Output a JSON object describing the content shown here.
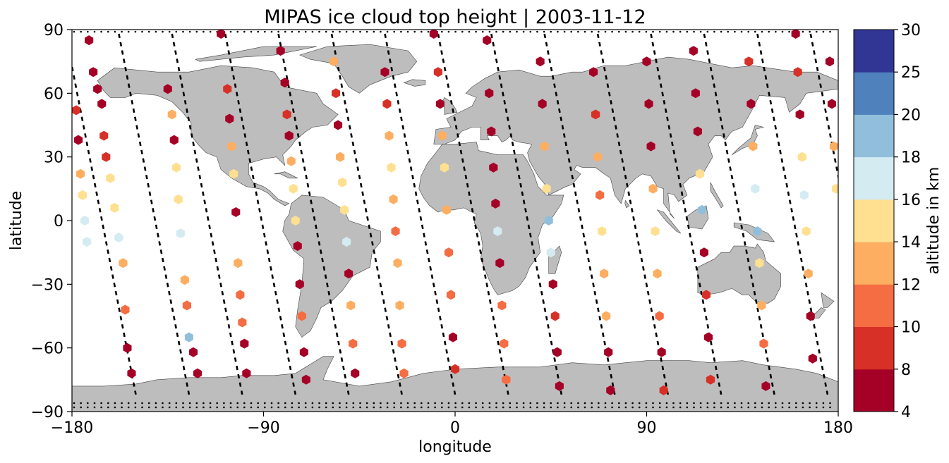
{
  "chart_data": {
    "type": "scatter",
    "title": "MIPAS ice cloud top height | 2003-11-12",
    "xlabel": "longitude",
    "ylabel": "latitude",
    "xlim": [
      -180,
      180
    ],
    "ylim": [
      -90,
      90
    ],
    "xticks": [
      "−180",
      "−90",
      "0",
      "90",
      "180"
    ],
    "yticks": [
      "90",
      "60",
      "30",
      "0",
      "−30",
      "−60",
      "−90"
    ],
    "colorbar": {
      "label": "altitude in km",
      "ticks": [
        "4",
        "8",
        "10",
        "12",
        "14",
        "16",
        "18",
        "20",
        "25",
        "30"
      ],
      "bins": [
        {
          "range": [
            4,
            8
          ],
          "color": "#a50026"
        },
        {
          "range": [
            8,
            10
          ],
          "color": "#d73027"
        },
        {
          "range": [
            10,
            12
          ],
          "color": "#f46d43"
        },
        {
          "range": [
            12,
            14
          ],
          "color": "#fdae61"
        },
        {
          "range": [
            14,
            16
          ],
          "color": "#fee090"
        },
        {
          "range": [
            16,
            18
          ],
          "color": "#d4ebf2"
        },
        {
          "range": [
            18,
            20
          ],
          "color": "#91bfdb"
        },
        {
          "range": [
            20,
            25
          ],
          "color": "#4f81bd"
        },
        {
          "range": [
            25,
            30
          ],
          "color": "#313695"
        }
      ]
    },
    "land_color": "#bdbdbd",
    "track_style": "black dashed",
    "orbit_tracks": [
      {
        "lon_start": -183,
        "lon_end": -150
      },
      {
        "lon_start": -158,
        "lon_end": -125
      },
      {
        "lon_start": -133,
        "lon_end": -100
      },
      {
        "lon_start": -108,
        "lon_end": -75
      },
      {
        "lon_start": -83,
        "lon_end": -50
      },
      {
        "lon_start": -58,
        "lon_end": -25
      },
      {
        "lon_start": -33,
        "lon_end": 0
      },
      {
        "lon_start": -8,
        "lon_end": 25
      },
      {
        "lon_start": 17,
        "lon_end": 50
      },
      {
        "lon_start": 42,
        "lon_end": 75
      },
      {
        "lon_start": 67,
        "lon_end": 100
      },
      {
        "lon_start": 92,
        "lon_end": 125
      },
      {
        "lon_start": 117,
        "lon_end": 150
      },
      {
        "lon_start": 142,
        "lon_end": 175
      },
      {
        "lon_start": 167,
        "lon_end": 200
      }
    ],
    "points": [
      {
        "lon": -172,
        "lat": 85,
        "alt": 6
      },
      {
        "lon": -170,
        "lat": 70,
        "alt": 6
      },
      {
        "lon": -168,
        "lat": 62,
        "alt": 6
      },
      {
        "lon": -166,
        "lat": 55,
        "alt": 6
      },
      {
        "lon": -165,
        "lat": 40,
        "alt": 9
      },
      {
        "lon": -164,
        "lat": 30,
        "alt": 9
      },
      {
        "lon": -162,
        "lat": 20,
        "alt": 14
      },
      {
        "lon": -160,
        "lat": 6,
        "alt": 15
      },
      {
        "lon": -158,
        "lat": -8,
        "alt": 17
      },
      {
        "lon": -156,
        "lat": -20,
        "alt": 13
      },
      {
        "lon": -155,
        "lat": -42,
        "alt": 11
      },
      {
        "lon": -154,
        "lat": -60,
        "alt": 6
      },
      {
        "lon": -152,
        "lat": -72,
        "alt": 6
      },
      {
        "lon": -178,
        "lat": 52,
        "alt": 9
      },
      {
        "lon": -177,
        "lat": 38,
        "alt": 6
      },
      {
        "lon": -176,
        "lat": 22,
        "alt": 13
      },
      {
        "lon": -175,
        "lat": 12,
        "alt": 15
      },
      {
        "lon": -174,
        "lat": 0,
        "alt": 17
      },
      {
        "lon": -173,
        "lat": -10,
        "alt": 17
      },
      {
        "lon": -135,
        "lat": 62,
        "alt": 6
      },
      {
        "lon": -133,
        "lat": 50,
        "alt": 13
      },
      {
        "lon": -132,
        "lat": 38,
        "alt": 6
      },
      {
        "lon": -131,
        "lat": 25,
        "alt": 15
      },
      {
        "lon": -130,
        "lat": 10,
        "alt": 15
      },
      {
        "lon": -129,
        "lat": -6,
        "alt": 17
      },
      {
        "lon": -127,
        "lat": -28,
        "alt": 13
      },
      {
        "lon": -126,
        "lat": -40,
        "alt": 11
      },
      {
        "lon": -125,
        "lat": -55,
        "alt": 19
      },
      {
        "lon": -123,
        "lat": -62,
        "alt": 6
      },
      {
        "lon": -121,
        "lat": -72,
        "alt": 6
      },
      {
        "lon": -110,
        "lat": 88,
        "alt": 6
      },
      {
        "lon": -107,
        "lat": 62,
        "alt": 9
      },
      {
        "lon": -106,
        "lat": 48,
        "alt": 6
      },
      {
        "lon": -105,
        "lat": 35,
        "alt": 13
      },
      {
        "lon": -104,
        "lat": 22,
        "alt": 15
      },
      {
        "lon": -103,
        "lat": 4,
        "alt": 6
      },
      {
        "lon": -102,
        "lat": -20,
        "alt": 13
      },
      {
        "lon": -101,
        "lat": -35,
        "alt": 11
      },
      {
        "lon": -100,
        "lat": -48,
        "alt": 11
      },
      {
        "lon": -99,
        "lat": -58,
        "alt": 6
      },
      {
        "lon": -98,
        "lat": -72,
        "alt": 6
      },
      {
        "lon": -82,
        "lat": 80,
        "alt": 6
      },
      {
        "lon": -80,
        "lat": 65,
        "alt": 6
      },
      {
        "lon": -79,
        "lat": 50,
        "alt": 9
      },
      {
        "lon": -78,
        "lat": 40,
        "alt": 6
      },
      {
        "lon": -77,
        "lat": 28,
        "alt": 13
      },
      {
        "lon": -76,
        "lat": 15,
        "alt": 15
      },
      {
        "lon": -75,
        "lat": 0,
        "alt": 15
      },
      {
        "lon": -74,
        "lat": -12,
        "alt": 6
      },
      {
        "lon": -73,
        "lat": -30,
        "alt": 6
      },
      {
        "lon": -72,
        "lat": -45,
        "alt": 11
      },
      {
        "lon": -71,
        "lat": -62,
        "alt": 6
      },
      {
        "lon": -70,
        "lat": -75,
        "alt": 6
      },
      {
        "lon": -57,
        "lat": 75,
        "alt": 12
      },
      {
        "lon": -56,
        "lat": 60,
        "alt": 9
      },
      {
        "lon": -55,
        "lat": 45,
        "alt": 6
      },
      {
        "lon": -54,
        "lat": 30,
        "alt": 13
      },
      {
        "lon": -53,
        "lat": 18,
        "alt": 15
      },
      {
        "lon": -52,
        "lat": 5,
        "alt": 15
      },
      {
        "lon": -51,
        "lat": -10,
        "alt": 17
      },
      {
        "lon": -50,
        "lat": -25,
        "alt": 6
      },
      {
        "lon": -49,
        "lat": -40,
        "alt": 13
      },
      {
        "lon": -48,
        "lat": -58,
        "alt": 11
      },
      {
        "lon": -47,
        "lat": -72,
        "alt": 6
      },
      {
        "lon": -33,
        "lat": 70,
        "alt": 6
      },
      {
        "lon": -32,
        "lat": 55,
        "alt": 9
      },
      {
        "lon": -31,
        "lat": 40,
        "alt": 13
      },
      {
        "lon": -30,
        "lat": 25,
        "alt": 15
      },
      {
        "lon": -29,
        "lat": 10,
        "alt": 13
      },
      {
        "lon": -28,
        "lat": -5,
        "alt": 11
      },
      {
        "lon": -27,
        "lat": -20,
        "alt": 13
      },
      {
        "lon": -26,
        "lat": -40,
        "alt": 13
      },
      {
        "lon": -25,
        "lat": -58,
        "alt": 11
      },
      {
        "lon": -24,
        "lat": -72,
        "alt": 11
      },
      {
        "lon": -10,
        "lat": 88,
        "alt": 6
      },
      {
        "lon": -8,
        "lat": 70,
        "alt": 9
      },
      {
        "lon": -7,
        "lat": 55,
        "alt": 6
      },
      {
        "lon": -6,
        "lat": 40,
        "alt": 13
      },
      {
        "lon": -5,
        "lat": 25,
        "alt": 15
      },
      {
        "lon": -4,
        "lat": 5,
        "alt": 13
      },
      {
        "lon": -3,
        "lat": -15,
        "alt": 11
      },
      {
        "lon": -2,
        "lat": -35,
        "alt": 11
      },
      {
        "lon": -1,
        "lat": -55,
        "alt": 6
      },
      {
        "lon": 0,
        "lat": -70,
        "alt": 9
      },
      {
        "lon": 15,
        "lat": 85,
        "alt": 6
      },
      {
        "lon": 16,
        "lat": 60,
        "alt": 6
      },
      {
        "lon": 17,
        "lat": 42,
        "alt": 6
      },
      {
        "lon": 18,
        "lat": 25,
        "alt": 6
      },
      {
        "lon": 19,
        "lat": 8,
        "alt": 6
      },
      {
        "lon": 20,
        "lat": -5,
        "alt": 17
      },
      {
        "lon": 21,
        "lat": -20,
        "alt": 6
      },
      {
        "lon": 22,
        "lat": -40,
        "alt": 11
      },
      {
        "lon": 23,
        "lat": -58,
        "alt": 11
      },
      {
        "lon": 24,
        "lat": -75,
        "alt": 11
      },
      {
        "lon": 40,
        "lat": 75,
        "alt": 6
      },
      {
        "lon": 41,
        "lat": 55,
        "alt": 6
      },
      {
        "lon": 42,
        "lat": 35,
        "alt": 13
      },
      {
        "lon": 43,
        "lat": 15,
        "alt": 15
      },
      {
        "lon": 44,
        "lat": 0,
        "alt": 19
      },
      {
        "lon": 45,
        "lat": -15,
        "alt": 17
      },
      {
        "lon": 46,
        "lat": -30,
        "alt": 6
      },
      {
        "lon": 47,
        "lat": -45,
        "alt": 9
      },
      {
        "lon": 48,
        "lat": -62,
        "alt": 6
      },
      {
        "lon": 49,
        "lat": -78,
        "alt": 6
      },
      {
        "lon": 65,
        "lat": 70,
        "alt": 6
      },
      {
        "lon": 66,
        "lat": 50,
        "alt": 9
      },
      {
        "lon": 67,
        "lat": 30,
        "alt": 13
      },
      {
        "lon": 68,
        "lat": 12,
        "alt": 11
      },
      {
        "lon": 69,
        "lat": -5,
        "alt": 15
      },
      {
        "lon": 70,
        "lat": -25,
        "alt": 13
      },
      {
        "lon": 71,
        "lat": -45,
        "alt": 13
      },
      {
        "lon": 72,
        "lat": -62,
        "alt": 6
      },
      {
        "lon": 73,
        "lat": -80,
        "alt": 6
      },
      {
        "lon": 90,
        "lat": 75,
        "alt": 6
      },
      {
        "lon": 91,
        "lat": 55,
        "alt": 6
      },
      {
        "lon": 92,
        "lat": 35,
        "alt": 6
      },
      {
        "lon": 93,
        "lat": 15,
        "alt": 13
      },
      {
        "lon": 94,
        "lat": -5,
        "alt": 15
      },
      {
        "lon": 95,
        "lat": -25,
        "alt": 13
      },
      {
        "lon": 96,
        "lat": -45,
        "alt": 11
      },
      {
        "lon": 97,
        "lat": -62,
        "alt": 6
      },
      {
        "lon": 98,
        "lat": -80,
        "alt": 9
      },
      {
        "lon": 112,
        "lat": 80,
        "alt": 6
      },
      {
        "lon": 113,
        "lat": 60,
        "alt": 6
      },
      {
        "lon": 114,
        "lat": 42,
        "alt": 6
      },
      {
        "lon": 115,
        "lat": 22,
        "alt": 15
      },
      {
        "lon": 116,
        "lat": 5,
        "alt": 19
      },
      {
        "lon": 117,
        "lat": -15,
        "alt": 6
      },
      {
        "lon": 118,
        "lat": -35,
        "alt": 9
      },
      {
        "lon": 119,
        "lat": -55,
        "alt": 6
      },
      {
        "lon": 120,
        "lat": -75,
        "alt": 9
      },
      {
        "lon": 138,
        "lat": 75,
        "alt": 9
      },
      {
        "lon": 139,
        "lat": 55,
        "alt": 6
      },
      {
        "lon": 140,
        "lat": 35,
        "alt": 13
      },
      {
        "lon": 141,
        "lat": 15,
        "alt": 17
      },
      {
        "lon": 142,
        "lat": -5,
        "alt": 19
      },
      {
        "lon": 143,
        "lat": -20,
        "alt": 15
      },
      {
        "lon": 144,
        "lat": -40,
        "alt": 13
      },
      {
        "lon": 145,
        "lat": -58,
        "alt": 11
      },
      {
        "lon": 146,
        "lat": -78,
        "alt": 6
      },
      {
        "lon": 160,
        "lat": 88,
        "alt": 6
      },
      {
        "lon": 161,
        "lat": 70,
        "alt": 9
      },
      {
        "lon": 162,
        "lat": 50,
        "alt": 6
      },
      {
        "lon": 163,
        "lat": 30,
        "alt": 15
      },
      {
        "lon": 164,
        "lat": 12,
        "alt": 17
      },
      {
        "lon": 165,
        "lat": -5,
        "alt": 15
      },
      {
        "lon": 166,
        "lat": -25,
        "alt": 13
      },
      {
        "lon": 167,
        "lat": -45,
        "alt": 6
      },
      {
        "lon": 168,
        "lat": -65,
        "alt": 6
      },
      {
        "lon": 176,
        "lat": 75,
        "alt": 6
      },
      {
        "lon": 177,
        "lat": 55,
        "alt": 6
      },
      {
        "lon": 178,
        "lat": 35,
        "alt": 13
      },
      {
        "lon": 179,
        "lat": 15,
        "alt": 15
      }
    ]
  }
}
